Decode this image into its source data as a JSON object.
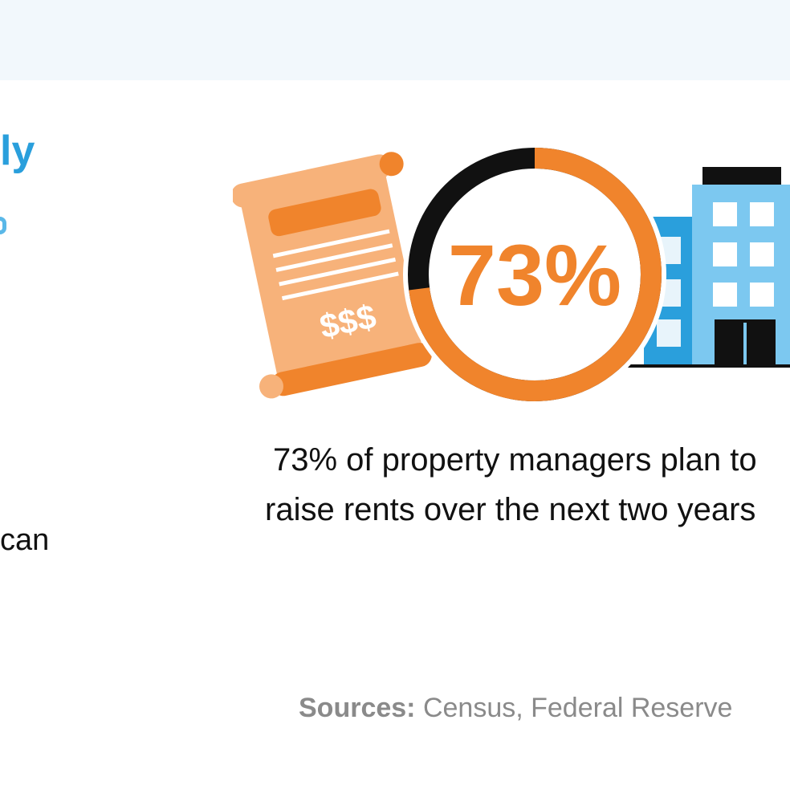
{
  "left_column": {
    "heading_fragment": "ly",
    "body_fragment": "can"
  },
  "stat": {
    "percent_label": "73%",
    "fraction": 0.73,
    "ring_color": "#f0842c",
    "ring_remainder_color": "#111111",
    "scroll_currency_label": "$$$"
  },
  "caption": {
    "line1": "73% of property managers plan to",
    "line2": "raise rents over the next two years"
  },
  "sources": {
    "label": "Sources:",
    "text": " Census, Federal Reserve"
  },
  "colors": {
    "brand_blue": "#2a9fdc",
    "building_light_blue": "#7cc8f0",
    "building_dark_blue": "#2a9fdc",
    "orange": "#f0842c",
    "scroll_light": "#f7b27a"
  },
  "icons": [
    "lease-scroll-icon",
    "percent-ring-icon",
    "apartment-building-icon"
  ]
}
